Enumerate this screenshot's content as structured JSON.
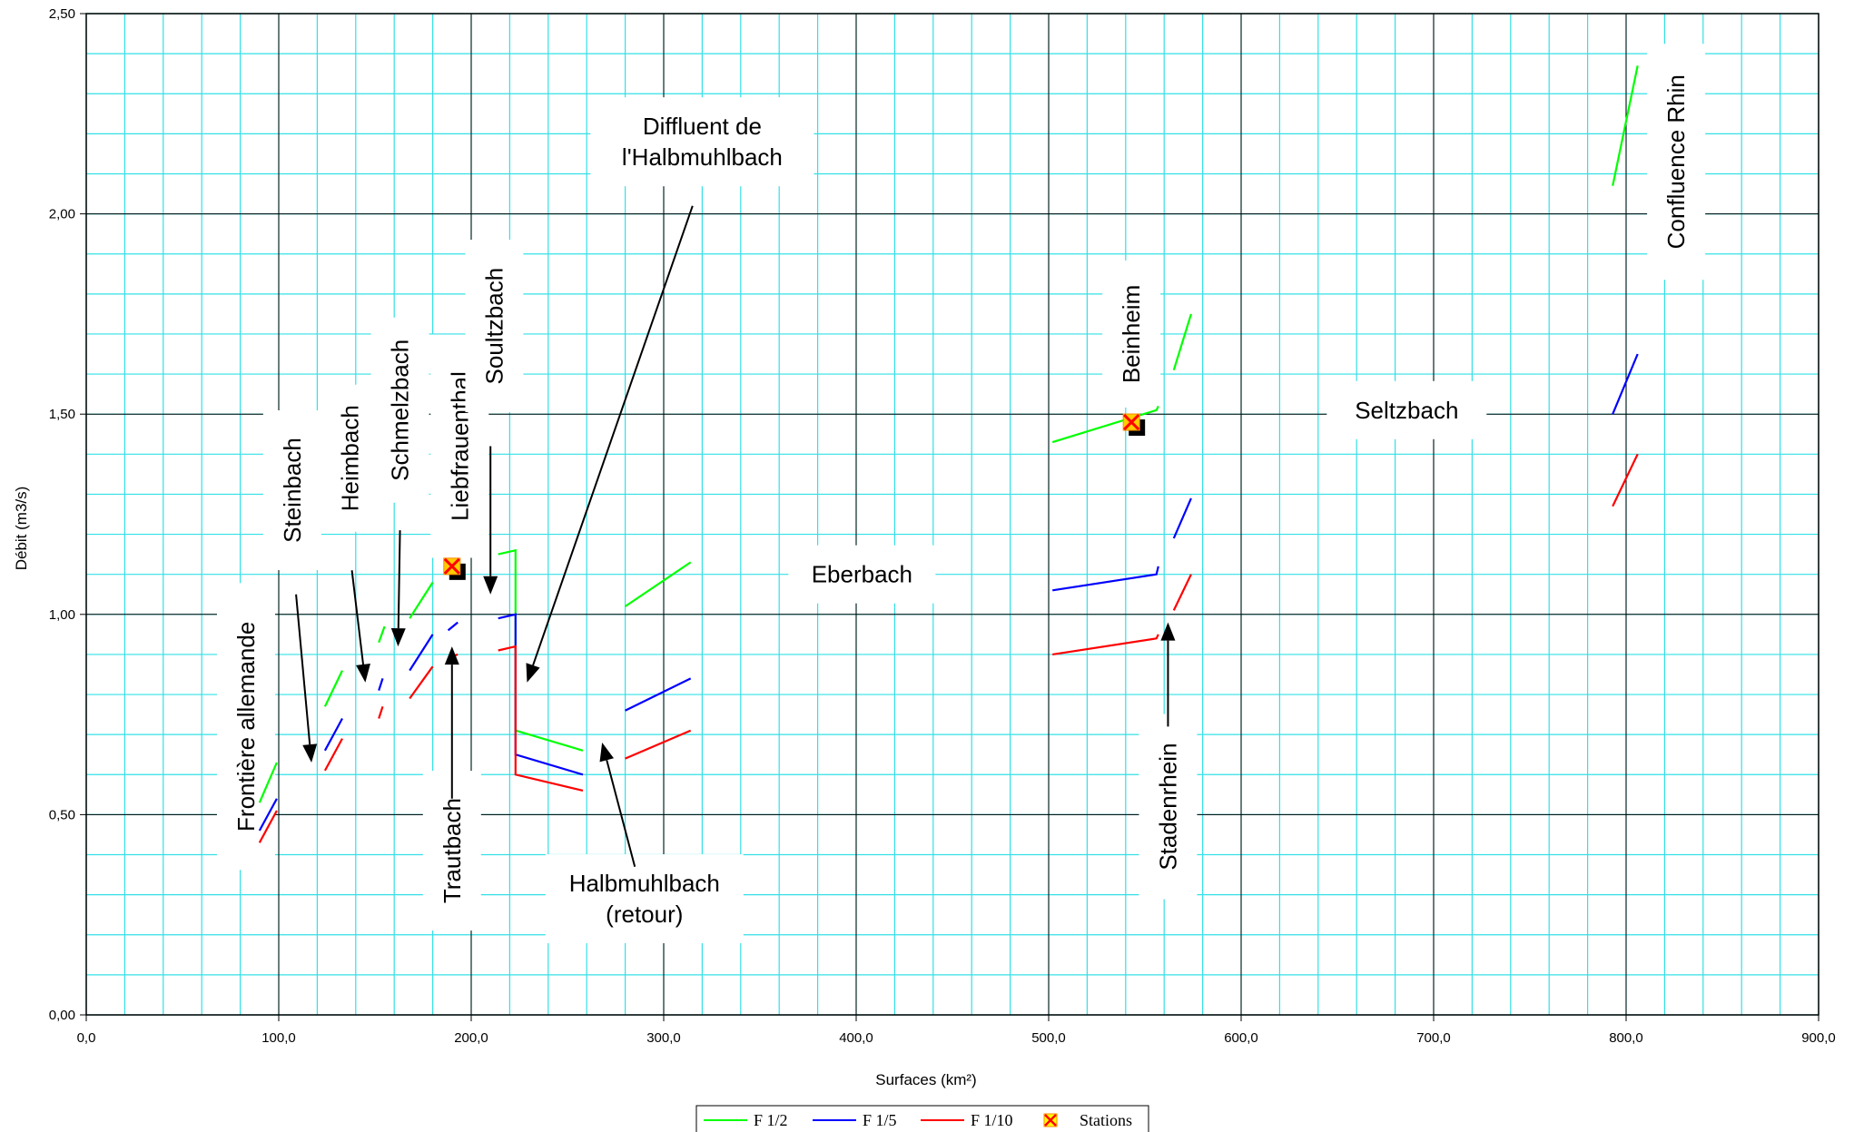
{
  "chart_data": {
    "type": "line",
    "xlabel": "Surfaces (km²)",
    "ylabel": "Débit (m3/s)",
    "xlim": [
      0,
      900
    ],
    "ylim": [
      0,
      2.5
    ],
    "x_ticks": [
      "0,0",
      "100,0",
      "200,0",
      "300,0",
      "400,0",
      "500,0",
      "600,0",
      "700,0",
      "800,0",
      "900,0"
    ],
    "y_ticks": [
      "0,00",
      "0,50",
      "1,00",
      "1,50",
      "2,00",
      "2,50"
    ],
    "grid": true,
    "legend_position": "bottom-center",
    "series": [
      {
        "name": "F 1/2",
        "color": "#00ff00",
        "segments": [
          [
            [
              90,
              0.53
            ],
            [
              99,
              0.63
            ]
          ],
          [
            [
              124,
              0.77
            ],
            [
              133,
              0.86
            ]
          ],
          [
            [
              152,
              0.93
            ],
            [
              155,
              0.97
            ]
          ],
          [
            [
              168,
              0.99
            ],
            [
              180,
              1.08
            ]
          ],
          [
            [
              214,
              1.15
            ],
            [
              223,
              1.16
            ],
            [
              223,
              0.71
            ],
            [
              258,
              0.66
            ]
          ],
          [
            [
              280,
              1.02
            ],
            [
              314,
              1.13
            ]
          ],
          [
            [
              502,
              1.43
            ],
            [
              556,
              1.51
            ],
            [
              557,
              1.52
            ]
          ],
          [
            [
              565,
              1.61
            ],
            [
              574,
              1.75
            ]
          ],
          [
            [
              793,
              2.07
            ],
            [
              806,
              2.37
            ]
          ]
        ]
      },
      {
        "name": "F 1/5",
        "color": "#0000ff",
        "segments": [
          [
            [
              90,
              0.46
            ],
            [
              99,
              0.54
            ]
          ],
          [
            [
              124,
              0.66
            ],
            [
              133,
              0.74
            ]
          ],
          [
            [
              152,
              0.81
            ],
            [
              154,
              0.84
            ]
          ],
          [
            [
              168,
              0.86
            ],
            [
              180,
              0.95
            ]
          ],
          [
            [
              188,
              0.96
            ],
            [
              193,
              0.98
            ]
          ],
          [
            [
              214,
              0.99
            ],
            [
              223,
              1.0
            ],
            [
              223,
              0.65
            ],
            [
              258,
              0.6
            ]
          ],
          [
            [
              280,
              0.76
            ],
            [
              314,
              0.84
            ]
          ],
          [
            [
              502,
              1.06
            ],
            [
              556,
              1.1
            ],
            [
              557,
              1.12
            ]
          ],
          [
            [
              565,
              1.19
            ],
            [
              574,
              1.29
            ]
          ],
          [
            [
              793,
              1.5
            ],
            [
              806,
              1.65
            ]
          ]
        ]
      },
      {
        "name": "F 1/10",
        "color": "#ff0000",
        "segments": [
          [
            [
              90,
              0.43
            ],
            [
              99,
              0.51
            ]
          ],
          [
            [
              124,
              0.61
            ],
            [
              133,
              0.69
            ]
          ],
          [
            [
              152,
              0.74
            ],
            [
              154,
              0.77
            ]
          ],
          [
            [
              168,
              0.79
            ],
            [
              180,
              0.87
            ]
          ],
          [
            [
              188,
              0.89
            ],
            [
              193,
              0.9
            ]
          ],
          [
            [
              214,
              0.91
            ],
            [
              223,
              0.92
            ],
            [
              223,
              0.6
            ],
            [
              258,
              0.56
            ]
          ],
          [
            [
              280,
              0.64
            ],
            [
              314,
              0.71
            ]
          ],
          [
            [
              502,
              0.9
            ],
            [
              556,
              0.94
            ],
            [
              557,
              0.95
            ]
          ],
          [
            [
              565,
              1.01
            ],
            [
              574,
              1.1
            ]
          ],
          [
            [
              793,
              1.27
            ],
            [
              806,
              1.4
            ]
          ]
        ]
      }
    ],
    "stations": {
      "name": "Stations",
      "points": [
        [
          190,
          1.12
        ],
        [
          543,
          1.48
        ]
      ]
    },
    "annotations": [
      {
        "id": "frontiere",
        "text": "Frontière allemande",
        "x": 83,
        "y": 0.72,
        "rotate": true
      },
      {
        "id": "steinbach",
        "text": "Steinbach",
        "x": 107,
        "y": 1.31,
        "rotate": true
      },
      {
        "id": "heimbach",
        "text": "Heimbach",
        "x": 137,
        "y": 1.39,
        "rotate": true
      },
      {
        "id": "schmelzbach",
        "text": "Schmelzbach",
        "x": 163,
        "y": 1.51,
        "rotate": true
      },
      {
        "id": "liebfrauenthal",
        "text": "Liebfrauenthal",
        "x": 194,
        "y": 1.42,
        "rotate": true
      },
      {
        "id": "soultzbach",
        "text": "Soultzbach",
        "x": 212,
        "y": 1.72,
        "rotate": true
      },
      {
        "id": "trautbach",
        "text": "Trautbach",
        "x": 190,
        "y": 0.41,
        "rotate": true
      },
      {
        "id": "diffluent",
        "text": [
          "Diffluent de",
          "l'Halbmuhlbach"
        ],
        "x": 320,
        "y": 2.18,
        "rotate": false
      },
      {
        "id": "halbmuhlbach",
        "text": [
          "Halbmuhlbach",
          "(retour)"
        ],
        "x": 290,
        "y": 0.29,
        "rotate": false
      },
      {
        "id": "eberbach",
        "text": "Eberbach",
        "x": 403,
        "y": 1.1,
        "rotate": false
      },
      {
        "id": "beinheim",
        "text": "Beinheim",
        "x": 543,
        "y": 1.7,
        "rotate": true
      },
      {
        "id": "seltzbach",
        "text": "Seltzbach",
        "x": 686,
        "y": 1.51,
        "rotate": false
      },
      {
        "id": "confluence",
        "text": "Confluence Rhin",
        "x": 826,
        "y": 2.13,
        "rotate": true
      },
      {
        "id": "stadenrhein",
        "text": "Stadenrhein",
        "x": 562,
        "y": 0.52,
        "rotate": true
      }
    ],
    "arrows": [
      {
        "from": [
          109,
          1.05
        ],
        "to": [
          117,
          0.63
        ]
      },
      {
        "from": [
          138,
          1.11
        ],
        "to": [
          145,
          0.83
        ]
      },
      {
        "from": [
          163,
          1.21
        ],
        "to": [
          162,
          0.92
        ]
      },
      {
        "from": [
          210,
          1.42
        ],
        "to": [
          210,
          1.05
        ]
      },
      {
        "from": [
          190,
          0.54
        ],
        "to": [
          190,
          0.92
        ]
      },
      {
        "from": [
          315,
          2.02
        ],
        "to": [
          229,
          0.83
        ]
      },
      {
        "from": [
          285,
          0.37
        ],
        "to": [
          268,
          0.68
        ]
      },
      {
        "from": [
          562,
          0.72
        ],
        "to": [
          562,
          0.98
        ]
      }
    ]
  }
}
